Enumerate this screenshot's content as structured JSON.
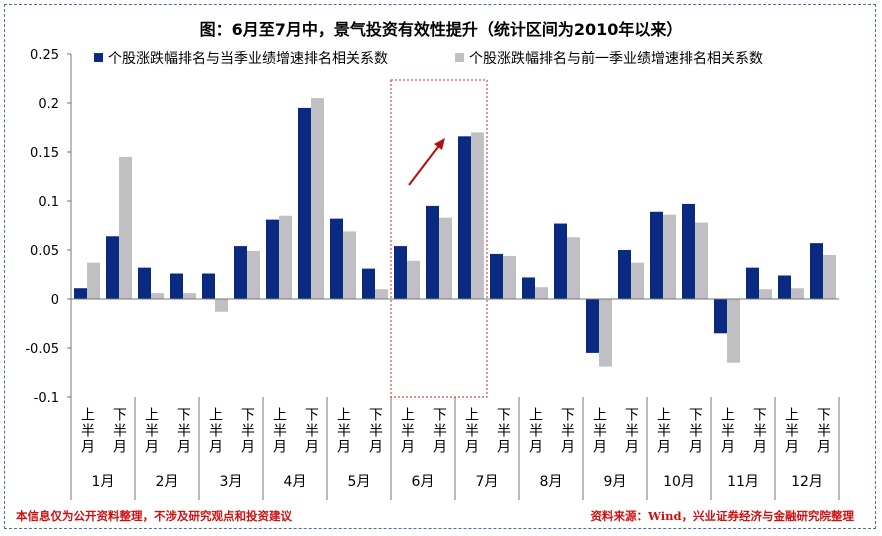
{
  "chart_data": {
    "type": "bar",
    "title": "图：6月至7月中，景气投资有效性提升（统计区间为2010年以来）",
    "months": [
      "1月",
      "2月",
      "3月",
      "4月",
      "5月",
      "6月",
      "7月",
      "8月",
      "9月",
      "10月",
      "11月",
      "12月"
    ],
    "halves": [
      "上半月",
      "下半月"
    ],
    "ylim": [
      -0.1,
      0.25
    ],
    "yticks": [
      "0.25",
      "0.2",
      "0.15",
      "0.1",
      "0.05",
      "0",
      "-0.05",
      "-0.1"
    ],
    "legend_position": "top",
    "series": [
      {
        "name": "个股涨跌幅排名与当季业绩增速排名相关系数",
        "color": "#0a2a82",
        "values": [
          0.011,
          0.064,
          0.032,
          0.026,
          0.026,
          0.054,
          0.081,
          0.195,
          0.082,
          0.031,
          0.054,
          0.095,
          0.166,
          0.046,
          0.022,
          0.077,
          -0.055,
          0.05,
          0.089,
          0.097,
          -0.035,
          0.032,
          0.024,
          0.057
        ]
      },
      {
        "name": "个股涨跌幅排名与前一季业绩增速排名相关系数",
        "color": "#c0c0c4",
        "values": [
          0.037,
          0.145,
          0.006,
          0.006,
          -0.013,
          0.049,
          0.085,
          0.205,
          0.069,
          0.01,
          0.039,
          0.083,
          0.17,
          0.044,
          0.012,
          0.063,
          -0.069,
          0.037,
          0.086,
          0.078,
          -0.065,
          0.01,
          0.011,
          0.045
        ]
      }
    ],
    "annotations": {
      "highlight_box": [
        "6月",
        "7月上半月"
      ],
      "highlight_color": "#d02020",
      "arrow": "up-right"
    }
  },
  "footer": {
    "disclaimer": "本信息仅为公开资料整理，不涉及研究观点和投资建议",
    "source": "资料来源：Wind，兴业证券经济与金融研究院整理"
  }
}
